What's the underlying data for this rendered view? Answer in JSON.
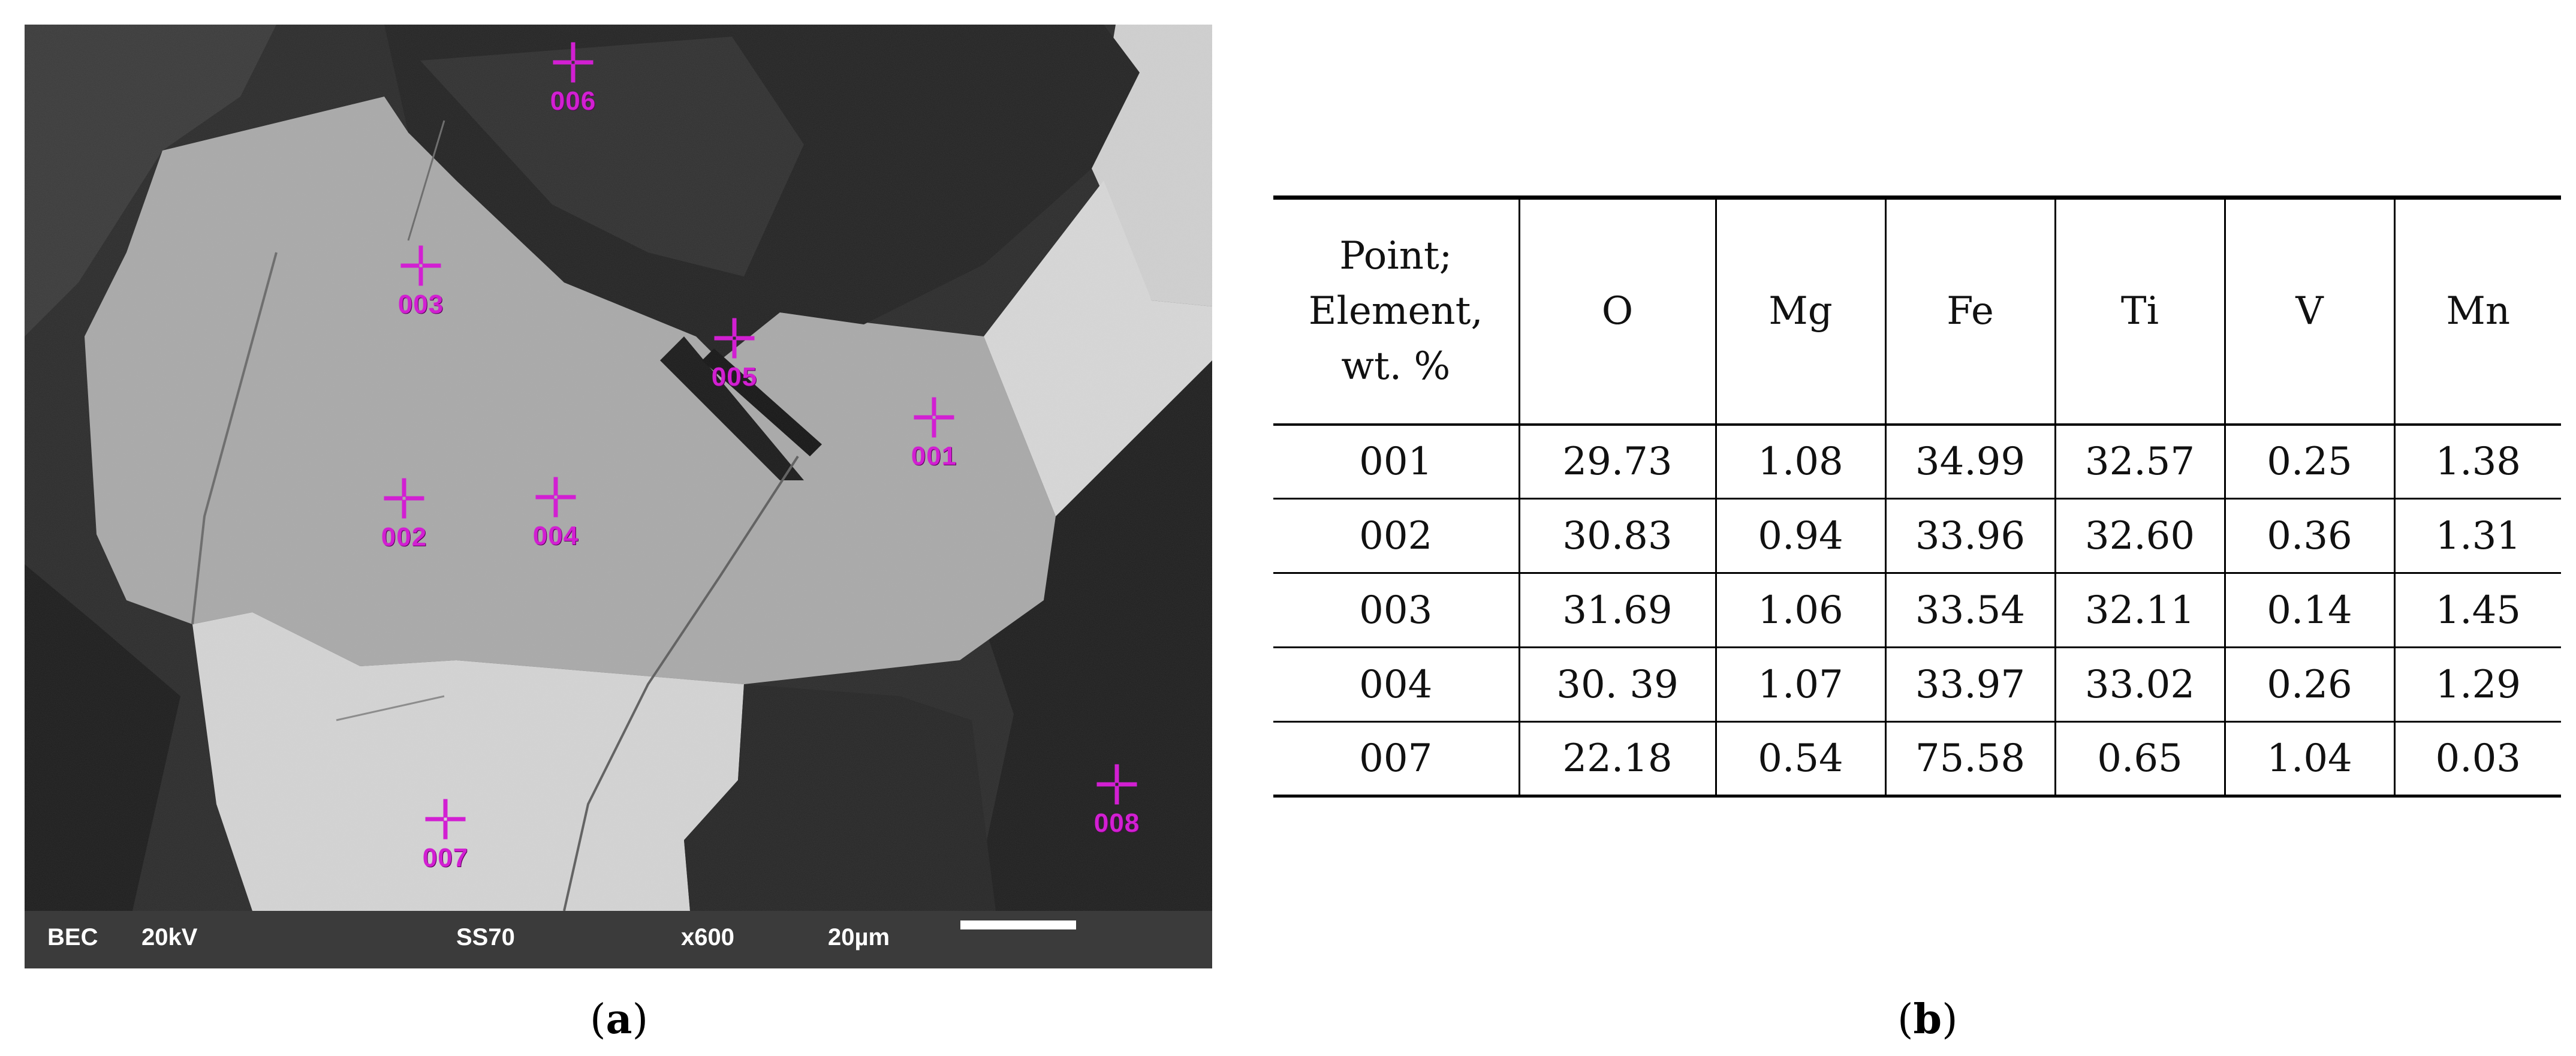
{
  "panel_a": {
    "caption_open": "(",
    "caption_letter": "a",
    "caption_close": ")",
    "info_bar": {
      "mode": "BEC",
      "voltage": "20kV",
      "sample": "SS70",
      "magnification": "x600",
      "scale": "20µm"
    },
    "marker_color": "#d21fd2",
    "markers": [
      {
        "label": "006"
      },
      {
        "label": "003"
      },
      {
        "label": "005"
      },
      {
        "label": "001"
      },
      {
        "label": "002"
      },
      {
        "label": "004"
      },
      {
        "label": "007"
      },
      {
        "label": "008"
      }
    ]
  },
  "panel_b": {
    "caption_open": "(",
    "caption_letter": "b",
    "caption_close": ")",
    "table": {
      "header_first": [
        "Point;",
        "Element,",
        "wt. %"
      ],
      "headers": [
        "O",
        "Mg",
        "Fe",
        "Ti",
        "V",
        "Mn"
      ],
      "rows": [
        [
          "001",
          "29.73",
          "1.08",
          "34.99",
          "32.57",
          "0.25",
          "1.38"
        ],
        [
          "002",
          "30.83",
          "0.94",
          "33.96",
          "32.60",
          "0.36",
          "1.31"
        ],
        [
          "003",
          "31.69",
          "1.06",
          "33.54",
          "32.11",
          "0.14",
          "1.45"
        ],
        [
          "004",
          "30. 39",
          "1.07",
          "33.97",
          "33.02",
          "0.26",
          "1.29"
        ],
        [
          "007",
          "22.18",
          "0.54",
          "75.58",
          "0.65",
          "1.04",
          "0.03"
        ]
      ]
    }
  }
}
